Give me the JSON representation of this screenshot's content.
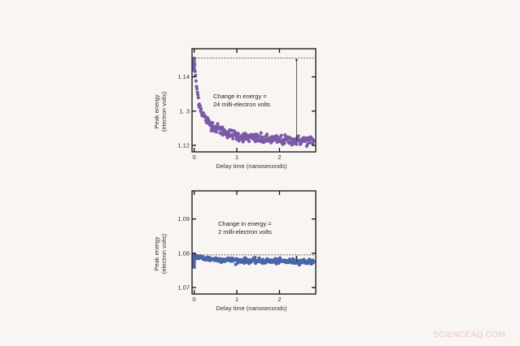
{
  "watermark": "SCIENCEAQ.COM",
  "chart_data": [
    {
      "type": "scatter",
      "id": "top",
      "color": "#7a5aa6",
      "title": "",
      "xlabel": "Delay time (nanoseconds)",
      "ylabel_line1": "Peak energy",
      "ylabel_line2": "(electron volts)",
      "xlim": [
        -0.05,
        2.85
      ],
      "ylim": [
        1.1181,
        1.1482
      ],
      "xticks": [
        0,
        1,
        2
      ],
      "xtick_labels": [
        "0",
        "1",
        "2"
      ],
      "yticks": [
        1.12,
        1.13,
        1.14
      ],
      "ytick_labels": [
        "1.12",
        "1. 3",
        "1.14"
      ],
      "annotation_line1": "Change in energy =",
      "annotation_line2": "24 milli-electron volts",
      "dashed_level": 1.1455,
      "arrow_x": 2.4,
      "arrow_from": 1.1213,
      "arrow_to": 1.1455,
      "decay": {
        "start": 1.1455,
        "plateau": 1.1213,
        "tau_fast": 0.08,
        "amp_fast": 0.0145,
        "tau_slow": 0.55,
        "amp_slow": 0.0097,
        "noise": 0.0007
      },
      "series": [
        {
          "name": "Peak energy",
          "x_range": [
            0,
            2.8
          ],
          "n_points": 260
        }
      ]
    },
    {
      "type": "scatter",
      "id": "bottom",
      "color": "#4a64a8",
      "title": "",
      "xlabel": "Delay time (nanoseconds)",
      "ylabel_line1": "Peak energy",
      "ylabel_line2": "(electron volts)",
      "xlim": [
        -0.05,
        2.85
      ],
      "ylim": [
        1.0681,
        1.0982
      ],
      "xticks": [
        0,
        1,
        2
      ],
      "xtick_labels": [
        "0",
        "1",
        "2"
      ],
      "yticks": [
        1.07,
        1.08,
        1.09
      ],
      "ytick_labels": [
        "1.07",
        "1.08",
        "1.09"
      ],
      "annotation_line1": "Change in energy =",
      "annotation_line2": "2 milli-electron volts",
      "dashed_level": 1.0795,
      "arrow_x": 2.4,
      "arrow_from": 1.0775,
      "arrow_to": 1.0795,
      "decay": {
        "start": 1.0795,
        "plateau": 1.0775,
        "tau_fast": 0.1,
        "amp_fast": 0.0008,
        "tau_slow": 1.0,
        "amp_slow": 0.0012,
        "noise": 0.00035
      },
      "series": [
        {
          "name": "Peak energy",
          "x_range": [
            0,
            2.8
          ],
          "n_points": 260
        }
      ]
    }
  ]
}
